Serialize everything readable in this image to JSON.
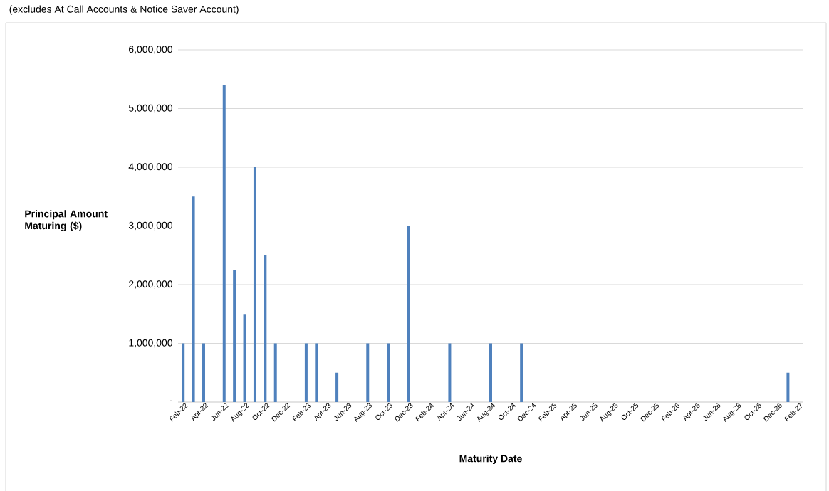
{
  "chart_data": {
    "type": "bar",
    "subtitle": "(excludes At Call Accounts & Notice Saver Account)",
    "xlabel": "Maturity Date",
    "ylabel": "Principal Amount Maturing ($)",
    "categories": [
      "Feb-22",
      null,
      "Apr-22",
      null,
      "Jun-22",
      null,
      "Aug-22",
      null,
      "Oct-22",
      null,
      "Dec-22",
      null,
      "Feb-23",
      null,
      "Apr-23",
      null,
      "Jun-23",
      null,
      "Aug-23",
      null,
      "Oct-23",
      null,
      "Dec-23",
      null,
      "Feb-24",
      null,
      "Apr-24",
      null,
      "Jun-24",
      null,
      "Aug-24",
      null,
      "Oct-24",
      null,
      "Dec-24",
      null,
      "Feb-25",
      null,
      "Apr-25",
      null,
      "Jun-25",
      null,
      "Aug-25",
      null,
      "Oct-25",
      null,
      "Dec-25",
      null,
      "Feb-26",
      null,
      "Apr-26",
      null,
      "Jun-26",
      null,
      "Aug-26",
      null,
      "Oct-26",
      null,
      "Dec-26",
      null,
      "Feb-27"
    ],
    "values": [
      1000000,
      3500000,
      1000000,
      null,
      5400000,
      2250000,
      1500000,
      4000000,
      2500000,
      1000000,
      null,
      null,
      1000000,
      1000000,
      null,
      500000,
      null,
      null,
      1000000,
      null,
      1000000,
      null,
      3000000,
      null,
      null,
      null,
      1000000,
      null,
      null,
      null,
      1000000,
      null,
      null,
      1000000,
      null,
      null,
      null,
      null,
      null,
      null,
      null,
      null,
      null,
      null,
      null,
      null,
      null,
      null,
      null,
      null,
      null,
      null,
      null,
      null,
      null,
      null,
      null,
      null,
      null,
      500000,
      null
    ],
    "color": "#4f81bd",
    "ylim": [
      0,
      6000000
    ],
    "yticks": [
      {
        "value": 0,
        "label": "-"
      },
      {
        "value": 1000000,
        "label": "1,000,000"
      },
      {
        "value": 2000000,
        "label": "2,000,000"
      },
      {
        "value": 3000000,
        "label": "3,000,000"
      },
      {
        "value": 4000000,
        "label": "4,000,000"
      },
      {
        "value": 5000000,
        "label": "5,000,000"
      },
      {
        "value": 6000000,
        "label": "6,000,000"
      }
    ],
    "grid": "y"
  }
}
